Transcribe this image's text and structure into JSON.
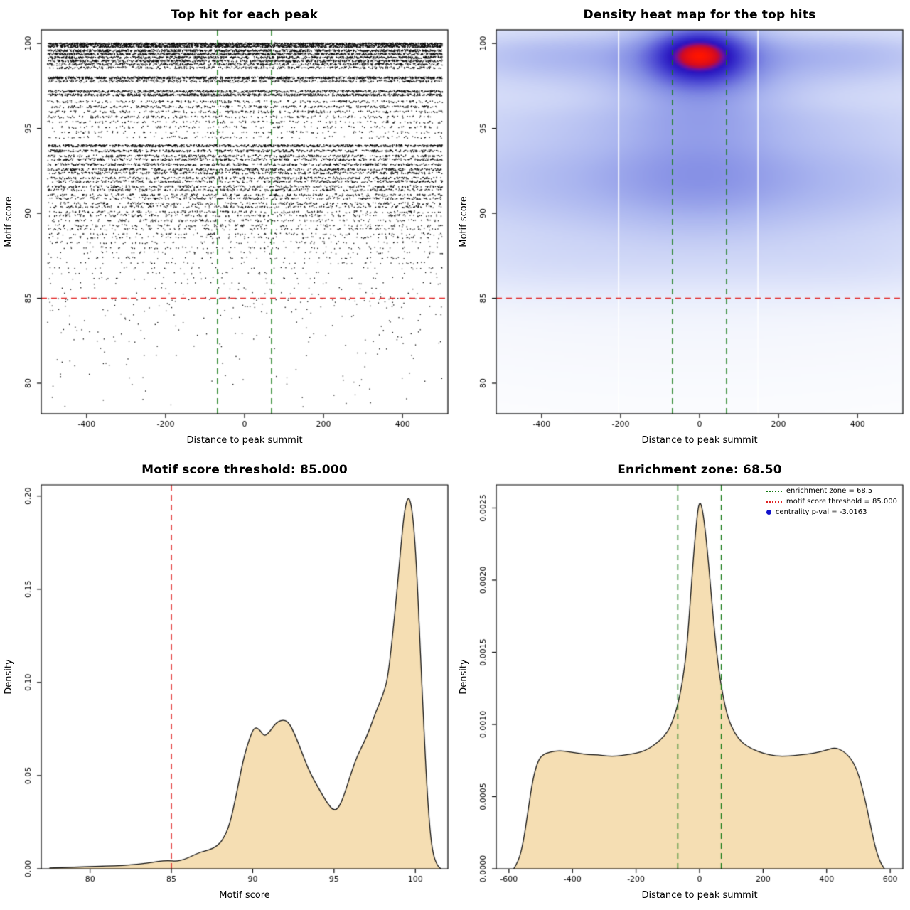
{
  "colors": {
    "point": "#000000",
    "red": "#e02222",
    "green": "#157a15",
    "wheat": "#f5deb3",
    "curve": "#111111",
    "legend_blue": "#1212cc",
    "axis": "#000000"
  },
  "chart_data": [
    {
      "id": "top-hit-scatter",
      "type": "scatter",
      "title": "Top hit for each peak",
      "xlabel": "Distance to peak summit",
      "ylabel": "Motif score",
      "xlim": [
        -515,
        515
      ],
      "ylim": [
        78.2,
        100.8
      ],
      "x_range": [
        -500,
        500
      ],
      "xticks": {
        "values": [
          -400,
          -200,
          0,
          200,
          400
        ],
        "labels": [
          "-400",
          "-200",
          "0",
          "200",
          "400"
        ]
      },
      "yticks": {
        "values": [
          80,
          85,
          90,
          95,
          100
        ],
        "labels": [
          "80",
          "85",
          "90",
          "95",
          "100"
        ]
      },
      "hline": {
        "value": 85,
        "color": "red"
      },
      "vlines": {
        "values": [
          -68.5,
          68.5
        ],
        "color": "green"
      },
      "band_fields": "score,count",
      "bands": [
        [
          100.0,
          1500
        ],
        [
          99.85,
          1200
        ],
        [
          99.6,
          1000
        ],
        [
          99.4,
          900
        ],
        [
          99.2,
          850
        ],
        [
          99.0,
          800
        ],
        [
          98.8,
          600
        ],
        [
          98.6,
          420
        ],
        [
          98.0,
          1100
        ],
        [
          97.8,
          480
        ],
        [
          97.2,
          750
        ],
        [
          97.0,
          850
        ],
        [
          96.6,
          320
        ],
        [
          96.3,
          380
        ],
        [
          96.0,
          280
        ],
        [
          95.7,
          230
        ],
        [
          95.4,
          170
        ],
        [
          95.1,
          140
        ],
        [
          94.8,
          120
        ],
        [
          94.5,
          100
        ],
        [
          94.0,
          950
        ],
        [
          93.7,
          560
        ],
        [
          93.4,
          430
        ],
        [
          93.2,
          470
        ],
        [
          92.9,
          520
        ],
        [
          92.6,
          480
        ],
        [
          92.4,
          430
        ],
        [
          92.1,
          390
        ],
        [
          91.9,
          400
        ],
        [
          91.6,
          360
        ],
        [
          91.4,
          340
        ],
        [
          91.1,
          310
        ],
        [
          90.9,
          290
        ],
        [
          90.6,
          270
        ],
        [
          90.4,
          250
        ],
        [
          90.1,
          230
        ],
        [
          89.9,
          210
        ],
        [
          89.6,
          190
        ],
        [
          89.3,
          160
        ],
        [
          89.1,
          140
        ],
        [
          88.8,
          125
        ],
        [
          88.6,
          105
        ],
        [
          88.3,
          90
        ],
        [
          88.0,
          80
        ],
        [
          87.7,
          70
        ],
        [
          87.4,
          60
        ],
        [
          87.1,
          52
        ],
        [
          86.8,
          45
        ],
        [
          86.5,
          38
        ],
        [
          86.2,
          32
        ],
        [
          85.9,
          26
        ],
        [
          85.6,
          21
        ],
        [
          85.3,
          16
        ],
        [
          85.05,
          12
        ]
      ],
      "sparse": {
        "count": 240,
        "ymin": 78.6,
        "ymax": 85
      }
    },
    {
      "id": "density-heatmap",
      "type": "heatmap",
      "title": "Density heat map for the top hits",
      "xlabel": "Distance to peak summit",
      "ylabel": "Motif score",
      "xlim": [
        -515,
        515
      ],
      "ylim": [
        78.2,
        100.8
      ],
      "xticks": {
        "values": [
          -400,
          -200,
          0,
          200,
          400
        ],
        "labels": [
          "-400",
          "-200",
          "0",
          "200",
          "400"
        ]
      },
      "yticks": {
        "values": [
          80,
          85,
          90,
          95,
          100
        ],
        "labels": [
          "80",
          "85",
          "90",
          "95",
          "100"
        ]
      },
      "hline": {
        "value": 85,
        "color": "red"
      },
      "vlines": {
        "values": [
          -68.5,
          68.5
        ],
        "color": "green"
      },
      "gamma": 0.5,
      "blob_fields": "x,y,sigma_x,sigma_y,weight",
      "blobs": [
        [
          0,
          99.4,
          70,
          0.95,
          1.0
        ],
        [
          0,
          99.15,
          100,
          1.3,
          0.6
        ],
        [
          0,
          98.2,
          135,
          2.0,
          0.32
        ],
        [
          0,
          93.0,
          140,
          2.6,
          0.2
        ],
        [
          -320,
          99.3,
          230,
          0.95,
          0.32
        ],
        [
          320,
          99.3,
          230,
          0.95,
          0.32
        ],
        [
          0,
          97.7,
          480,
          0.8,
          0.1
        ],
        [
          0,
          95.6,
          480,
          0.95,
          0.13
        ],
        [
          -260,
          92.8,
          330,
          1.9,
          0.19
        ],
        [
          260,
          92.8,
          330,
          1.9,
          0.19
        ],
        [
          0,
          91.3,
          480,
          1.5,
          0.15
        ],
        [
          0,
          89.6,
          500,
          1.2,
          0.07
        ],
        [
          -330,
          87.4,
          270,
          1.3,
          0.09
        ],
        [
          330,
          87.4,
          270,
          1.3,
          0.09
        ],
        [
          0,
          94.0,
          600,
          6.0,
          0.05
        ]
      ],
      "colormap": [
        [
          0.0,
          "#ffffff"
        ],
        [
          0.06,
          "#f5f7fd"
        ],
        [
          0.15,
          "#e4e9fb"
        ],
        [
          0.28,
          "#ccd4f6"
        ],
        [
          0.42,
          "#aab5ef"
        ],
        [
          0.56,
          "#828ce4"
        ],
        [
          0.68,
          "#5a5ad8"
        ],
        [
          0.78,
          "#3a32cc"
        ],
        [
          0.86,
          "#2a14c0"
        ],
        [
          0.9,
          "#70109e"
        ],
        [
          0.94,
          "#cc0a28"
        ],
        [
          1.0,
          "#ff1400"
        ]
      ],
      "white_vlines": [
        -205,
        148
      ]
    },
    {
      "id": "motif-score-density",
      "type": "area",
      "title": "Motif score threshold: 85.000",
      "xlabel": "Motif score",
      "ylabel": "Density",
      "xlim": [
        77,
        102
      ],
      "ylim": [
        0,
        0.206
      ],
      "xticks": {
        "values": [
          80,
          85,
          90,
          95,
          100
        ],
        "labels": [
          "80",
          "85",
          "90",
          "95",
          "100"
        ]
      },
      "yticks": {
        "values": [
          0,
          0.05,
          0.1,
          0.15,
          0.2
        ],
        "labels": [
          "0.00",
          "0.05",
          "0.10",
          "0.15",
          "0.20"
        ]
      },
      "vlines": {
        "values": [
          85
        ],
        "color": "red"
      },
      "points": [
        [
          77.5,
          0.0004
        ],
        [
          78.5,
          0.0007
        ],
        [
          79.5,
          0.001
        ],
        [
          80.5,
          0.0013
        ],
        [
          81.5,
          0.0016
        ],
        [
          82.5,
          0.002
        ],
        [
          83.5,
          0.003
        ],
        [
          84.2,
          0.004
        ],
        [
          84.8,
          0.0045
        ],
        [
          85.3,
          0.004
        ],
        [
          85.8,
          0.005
        ],
        [
          86.3,
          0.007
        ],
        [
          86.8,
          0.009
        ],
        [
          87.3,
          0.01
        ],
        [
          87.8,
          0.012
        ],
        [
          88.2,
          0.016
        ],
        [
          88.6,
          0.024
        ],
        [
          89.0,
          0.04
        ],
        [
          89.4,
          0.058
        ],
        [
          89.8,
          0.07
        ],
        [
          90.1,
          0.076
        ],
        [
          90.4,
          0.075
        ],
        [
          90.7,
          0.071
        ],
        [
          91.0,
          0.073
        ],
        [
          91.4,
          0.078
        ],
        [
          91.8,
          0.08
        ],
        [
          92.2,
          0.079
        ],
        [
          92.6,
          0.072
        ],
        [
          93.0,
          0.063
        ],
        [
          93.4,
          0.054
        ],
        [
          93.8,
          0.047
        ],
        [
          94.2,
          0.041
        ],
        [
          94.6,
          0.035
        ],
        [
          95.0,
          0.031
        ],
        [
          95.3,
          0.033
        ],
        [
          95.6,
          0.039
        ],
        [
          96.0,
          0.05
        ],
        [
          96.4,
          0.06
        ],
        [
          96.8,
          0.067
        ],
        [
          97.2,
          0.075
        ],
        [
          97.6,
          0.085
        ],
        [
          98.0,
          0.093
        ],
        [
          98.3,
          0.102
        ],
        [
          98.6,
          0.125
        ],
        [
          98.9,
          0.152
        ],
        [
          99.1,
          0.172
        ],
        [
          99.3,
          0.19
        ],
        [
          99.5,
          0.199
        ],
        [
          99.7,
          0.198
        ],
        [
          99.9,
          0.185
        ],
        [
          100.1,
          0.158
        ],
        [
          100.3,
          0.118
        ],
        [
          100.5,
          0.08
        ],
        [
          100.7,
          0.045
        ],
        [
          100.9,
          0.02
        ],
        [
          101.1,
          0.007
        ],
        [
          101.4,
          0.001
        ],
        [
          101.6,
          0
        ]
      ]
    },
    {
      "id": "distance-density",
      "type": "area",
      "title": "Enrichment zone: 68.50",
      "xlabel": "Distance to peak summit",
      "ylabel": "Density",
      "xlim": [
        -640,
        640
      ],
      "ylim": [
        0,
        0.00266
      ],
      "xticks": {
        "values": [
          -600,
          -400,
          -200,
          0,
          200,
          400,
          600
        ],
        "labels": [
          "-600",
          "-400",
          "-200",
          "0",
          "200",
          "400",
          "600"
        ]
      },
      "yticks": {
        "values": [
          0,
          0.0005,
          0.001,
          0.0015,
          0.002,
          0.0025
        ],
        "labels": [
          "0.0000",
          "0.0005",
          "0.0010",
          "0.0015",
          "0.0020",
          "0.0025"
        ]
      },
      "vlines": {
        "values": [
          -68.5,
          68.5
        ],
        "color": "green"
      },
      "legend": {
        "items": [
          {
            "symbol": "dotted-line",
            "color": "#157a15",
            "label": "enrichment zone = 68.5"
          },
          {
            "symbol": "dotted-line",
            "color": "#e02222",
            "label": "motif score threshold = 85.000"
          },
          {
            "symbol": "point",
            "color": "#1212cc",
            "label": "centrality p-val = -3.0163"
          }
        ]
      },
      "points": [
        [
          -585,
          0
        ],
        [
          -570,
          5e-05
        ],
        [
          -555,
          0.00018
        ],
        [
          -540,
          0.0004
        ],
        [
          -525,
          0.00062
        ],
        [
          -510,
          0.00074
        ],
        [
          -495,
          0.00079
        ],
        [
          -470,
          0.00081
        ],
        [
          -440,
          0.00082
        ],
        [
          -410,
          0.00081
        ],
        [
          -380,
          0.0008
        ],
        [
          -350,
          0.00079
        ],
        [
          -320,
          0.00079
        ],
        [
          -290,
          0.00078
        ],
        [
          -260,
          0.00078
        ],
        [
          -230,
          0.00079
        ],
        [
          -200,
          0.0008
        ],
        [
          -170,
          0.00082
        ],
        [
          -140,
          0.00086
        ],
        [
          -110,
          0.00092
        ],
        [
          -90,
          0.00099
        ],
        [
          -70,
          0.00112
        ],
        [
          -55,
          0.00128
        ],
        [
          -40,
          0.00152
        ],
        [
          -28,
          0.0019
        ],
        [
          -16,
          0.00225
        ],
        [
          -6,
          0.00248
        ],
        [
          0,
          0.00254
        ],
        [
          6,
          0.00252
        ],
        [
          14,
          0.00242
        ],
        [
          24,
          0.00222
        ],
        [
          36,
          0.00192
        ],
        [
          48,
          0.00162
        ],
        [
          60,
          0.00138
        ],
        [
          75,
          0.00118
        ],
        [
          90,
          0.00104
        ],
        [
          110,
          0.00094
        ],
        [
          135,
          0.00087
        ],
        [
          165,
          0.00083
        ],
        [
          200,
          0.0008
        ],
        [
          240,
          0.00078
        ],
        [
          280,
          0.00078
        ],
        [
          320,
          0.00079
        ],
        [
          360,
          0.0008
        ],
        [
          395,
          0.00082
        ],
        [
          425,
          0.00084
        ],
        [
          450,
          0.00082
        ],
        [
          475,
          0.00077
        ],
        [
          495,
          0.00069
        ],
        [
          510,
          0.00058
        ],
        [
          525,
          0.00044
        ],
        [
          540,
          0.00028
        ],
        [
          555,
          0.00013
        ],
        [
          570,
          4e-05
        ],
        [
          582,
          0
        ]
      ]
    }
  ]
}
